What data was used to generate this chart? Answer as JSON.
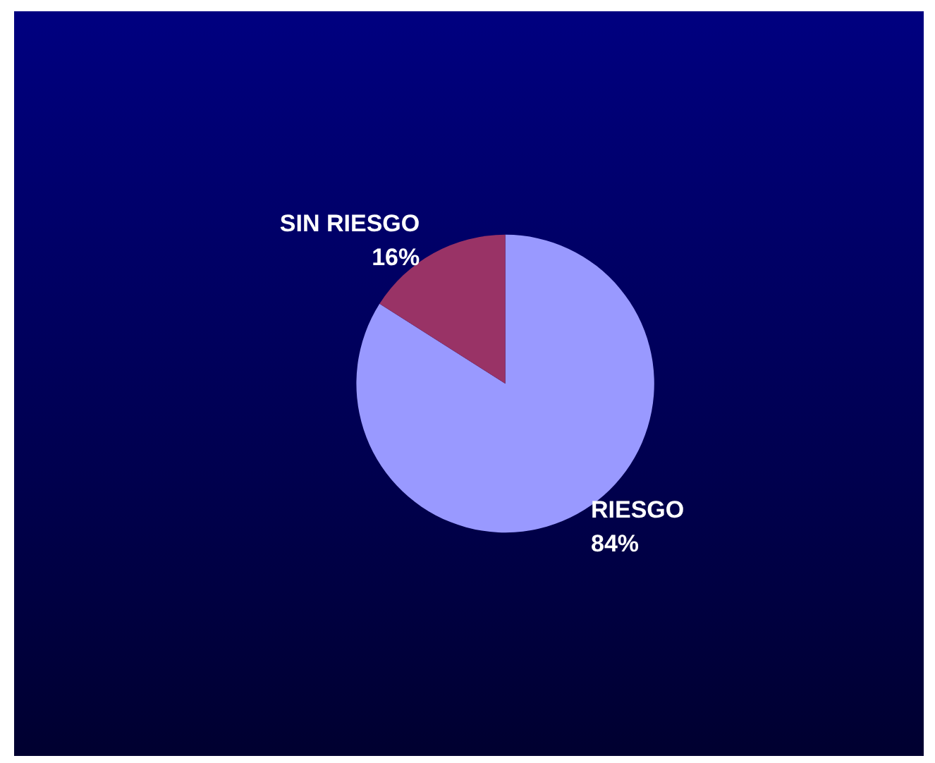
{
  "chart_data": {
    "type": "pie",
    "categories": [
      "RIESGO",
      "SIN RIESGO"
    ],
    "values": [
      84,
      16
    ],
    "colors": [
      "#9999ff",
      "#993366"
    ],
    "value_labels": [
      "84%",
      "16%"
    ]
  }
}
